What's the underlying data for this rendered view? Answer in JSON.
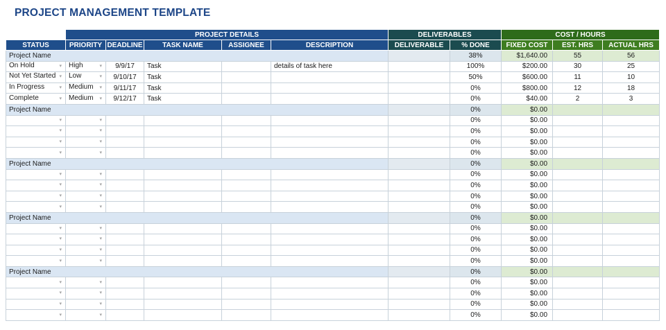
{
  "title": "PROJECT MANAGEMENT TEMPLATE",
  "colors": {
    "title": "#1c4587",
    "blue": "#1f4e8b",
    "teal": "#1b4b4f",
    "green-dark": "#2e6b1a",
    "green-mid": "#3e7d20",
    "sum-blue": "#dae6f3",
    "sum-deliv": "#e3eaf0",
    "sum-pct": "#dce6ed",
    "sum-green": "#ddebd2",
    "grid": "#c7d1da",
    "arrow": "#a4a4a4"
  },
  "icons": {
    "dropdown_arrow": "▾"
  },
  "bands": {
    "project_details": "PROJECT DETAILS",
    "deliverables": "DELIVERABLES",
    "cost_hours": "COST / HOURS"
  },
  "columns": [
    "STATUS",
    "PRIORITY",
    "DEADLINE",
    "TASK NAME",
    "ASSIGNEE",
    "DESCRIPTION",
    "DELIVERABLE",
    "% DONE",
    "FIXED COST",
    "EST. HRS",
    "ACTUAL HRS"
  ],
  "projects": [
    {
      "name": "Project Name",
      "summary": {
        "pct_done": "38%",
        "fixed_cost": "$1,640.00",
        "est_hrs": "55",
        "actual_hrs": "56"
      },
      "tasks": [
        {
          "status": "On Hold",
          "priority": "High",
          "deadline": "9/9/17",
          "task": "Task",
          "assignee": "",
          "description": "details of task here",
          "deliverable": "",
          "pct_done": "100%",
          "fixed_cost": "$200.00",
          "est_hrs": "30",
          "actual_hrs": "25"
        },
        {
          "status": "Not Yet Started",
          "priority": "Low",
          "deadline": "9/10/17",
          "task": "Task",
          "assignee": "",
          "description": "",
          "deliverable": "",
          "pct_done": "50%",
          "fixed_cost": "$600.00",
          "est_hrs": "11",
          "actual_hrs": "10"
        },
        {
          "status": "In Progress",
          "priority": "Medium",
          "deadline": "9/11/17",
          "task": "Task",
          "assignee": "",
          "description": "",
          "deliverable": "",
          "pct_done": "0%",
          "fixed_cost": "$800.00",
          "est_hrs": "12",
          "actual_hrs": "18"
        },
        {
          "status": "Complete",
          "priority": "Medium",
          "deadline": "9/12/17",
          "task": "Task",
          "assignee": "",
          "description": "",
          "deliverable": "",
          "pct_done": "0%",
          "fixed_cost": "$40.00",
          "est_hrs": "2",
          "actual_hrs": "3"
        }
      ]
    },
    {
      "name": "Project Name",
      "summary": {
        "pct_done": "0%",
        "fixed_cost": "$0.00",
        "est_hrs": "",
        "actual_hrs": ""
      },
      "tasks": [
        {
          "status": "",
          "priority": "",
          "deadline": "",
          "task": "",
          "assignee": "",
          "description": "",
          "deliverable": "",
          "pct_done": "0%",
          "fixed_cost": "$0.00",
          "est_hrs": "",
          "actual_hrs": ""
        },
        {
          "status": "",
          "priority": "",
          "deadline": "",
          "task": "",
          "assignee": "",
          "description": "",
          "deliverable": "",
          "pct_done": "0%",
          "fixed_cost": "$0.00",
          "est_hrs": "",
          "actual_hrs": ""
        },
        {
          "status": "",
          "priority": "",
          "deadline": "",
          "task": "",
          "assignee": "",
          "description": "",
          "deliverable": "",
          "pct_done": "0%",
          "fixed_cost": "$0.00",
          "est_hrs": "",
          "actual_hrs": ""
        },
        {
          "status": "",
          "priority": "",
          "deadline": "",
          "task": "",
          "assignee": "",
          "description": "",
          "deliverable": "",
          "pct_done": "0%",
          "fixed_cost": "$0.00",
          "est_hrs": "",
          "actual_hrs": ""
        }
      ]
    },
    {
      "name": "Project Name",
      "summary": {
        "pct_done": "0%",
        "fixed_cost": "$0.00",
        "est_hrs": "",
        "actual_hrs": ""
      },
      "tasks": [
        {
          "status": "",
          "priority": "",
          "deadline": "",
          "task": "",
          "assignee": "",
          "description": "",
          "deliverable": "",
          "pct_done": "0%",
          "fixed_cost": "$0.00",
          "est_hrs": "",
          "actual_hrs": ""
        },
        {
          "status": "",
          "priority": "",
          "deadline": "",
          "task": "",
          "assignee": "",
          "description": "",
          "deliverable": "",
          "pct_done": "0%",
          "fixed_cost": "$0.00",
          "est_hrs": "",
          "actual_hrs": ""
        },
        {
          "status": "",
          "priority": "",
          "deadline": "",
          "task": "",
          "assignee": "",
          "description": "",
          "deliverable": "",
          "pct_done": "0%",
          "fixed_cost": "$0.00",
          "est_hrs": "",
          "actual_hrs": ""
        },
        {
          "status": "",
          "priority": "",
          "deadline": "",
          "task": "",
          "assignee": "",
          "description": "",
          "deliverable": "",
          "pct_done": "0%",
          "fixed_cost": "$0.00",
          "est_hrs": "",
          "actual_hrs": ""
        }
      ]
    },
    {
      "name": "Project Name",
      "summary": {
        "pct_done": "0%",
        "fixed_cost": "$0.00",
        "est_hrs": "",
        "actual_hrs": ""
      },
      "tasks": [
        {
          "status": "",
          "priority": "",
          "deadline": "",
          "task": "",
          "assignee": "",
          "description": "",
          "deliverable": "",
          "pct_done": "0%",
          "fixed_cost": "$0.00",
          "est_hrs": "",
          "actual_hrs": ""
        },
        {
          "status": "",
          "priority": "",
          "deadline": "",
          "task": "",
          "assignee": "",
          "description": "",
          "deliverable": "",
          "pct_done": "0%",
          "fixed_cost": "$0.00",
          "est_hrs": "",
          "actual_hrs": ""
        },
        {
          "status": "",
          "priority": "",
          "deadline": "",
          "task": "",
          "assignee": "",
          "description": "",
          "deliverable": "",
          "pct_done": "0%",
          "fixed_cost": "$0.00",
          "est_hrs": "",
          "actual_hrs": ""
        },
        {
          "status": "",
          "priority": "",
          "deadline": "",
          "task": "",
          "assignee": "",
          "description": "",
          "deliverable": "",
          "pct_done": "0%",
          "fixed_cost": "$0.00",
          "est_hrs": "",
          "actual_hrs": ""
        }
      ]
    },
    {
      "name": "Project Name",
      "summary": {
        "pct_done": "0%",
        "fixed_cost": "$0.00",
        "est_hrs": "",
        "actual_hrs": ""
      },
      "tasks": [
        {
          "status": "",
          "priority": "",
          "deadline": "",
          "task": "",
          "assignee": "",
          "description": "",
          "deliverable": "",
          "pct_done": "0%",
          "fixed_cost": "$0.00",
          "est_hrs": "",
          "actual_hrs": ""
        },
        {
          "status": "",
          "priority": "",
          "deadline": "",
          "task": "",
          "assignee": "",
          "description": "",
          "deliverable": "",
          "pct_done": "0%",
          "fixed_cost": "$0.00",
          "est_hrs": "",
          "actual_hrs": ""
        },
        {
          "status": "",
          "priority": "",
          "deadline": "",
          "task": "",
          "assignee": "",
          "description": "",
          "deliverable": "",
          "pct_done": "0%",
          "fixed_cost": "$0.00",
          "est_hrs": "",
          "actual_hrs": ""
        },
        {
          "status": "",
          "priority": "",
          "deadline": "",
          "task": "",
          "assignee": "",
          "description": "",
          "deliverable": "",
          "pct_done": "0%",
          "fixed_cost": "$0.00",
          "est_hrs": "",
          "actual_hrs": ""
        }
      ]
    }
  ]
}
